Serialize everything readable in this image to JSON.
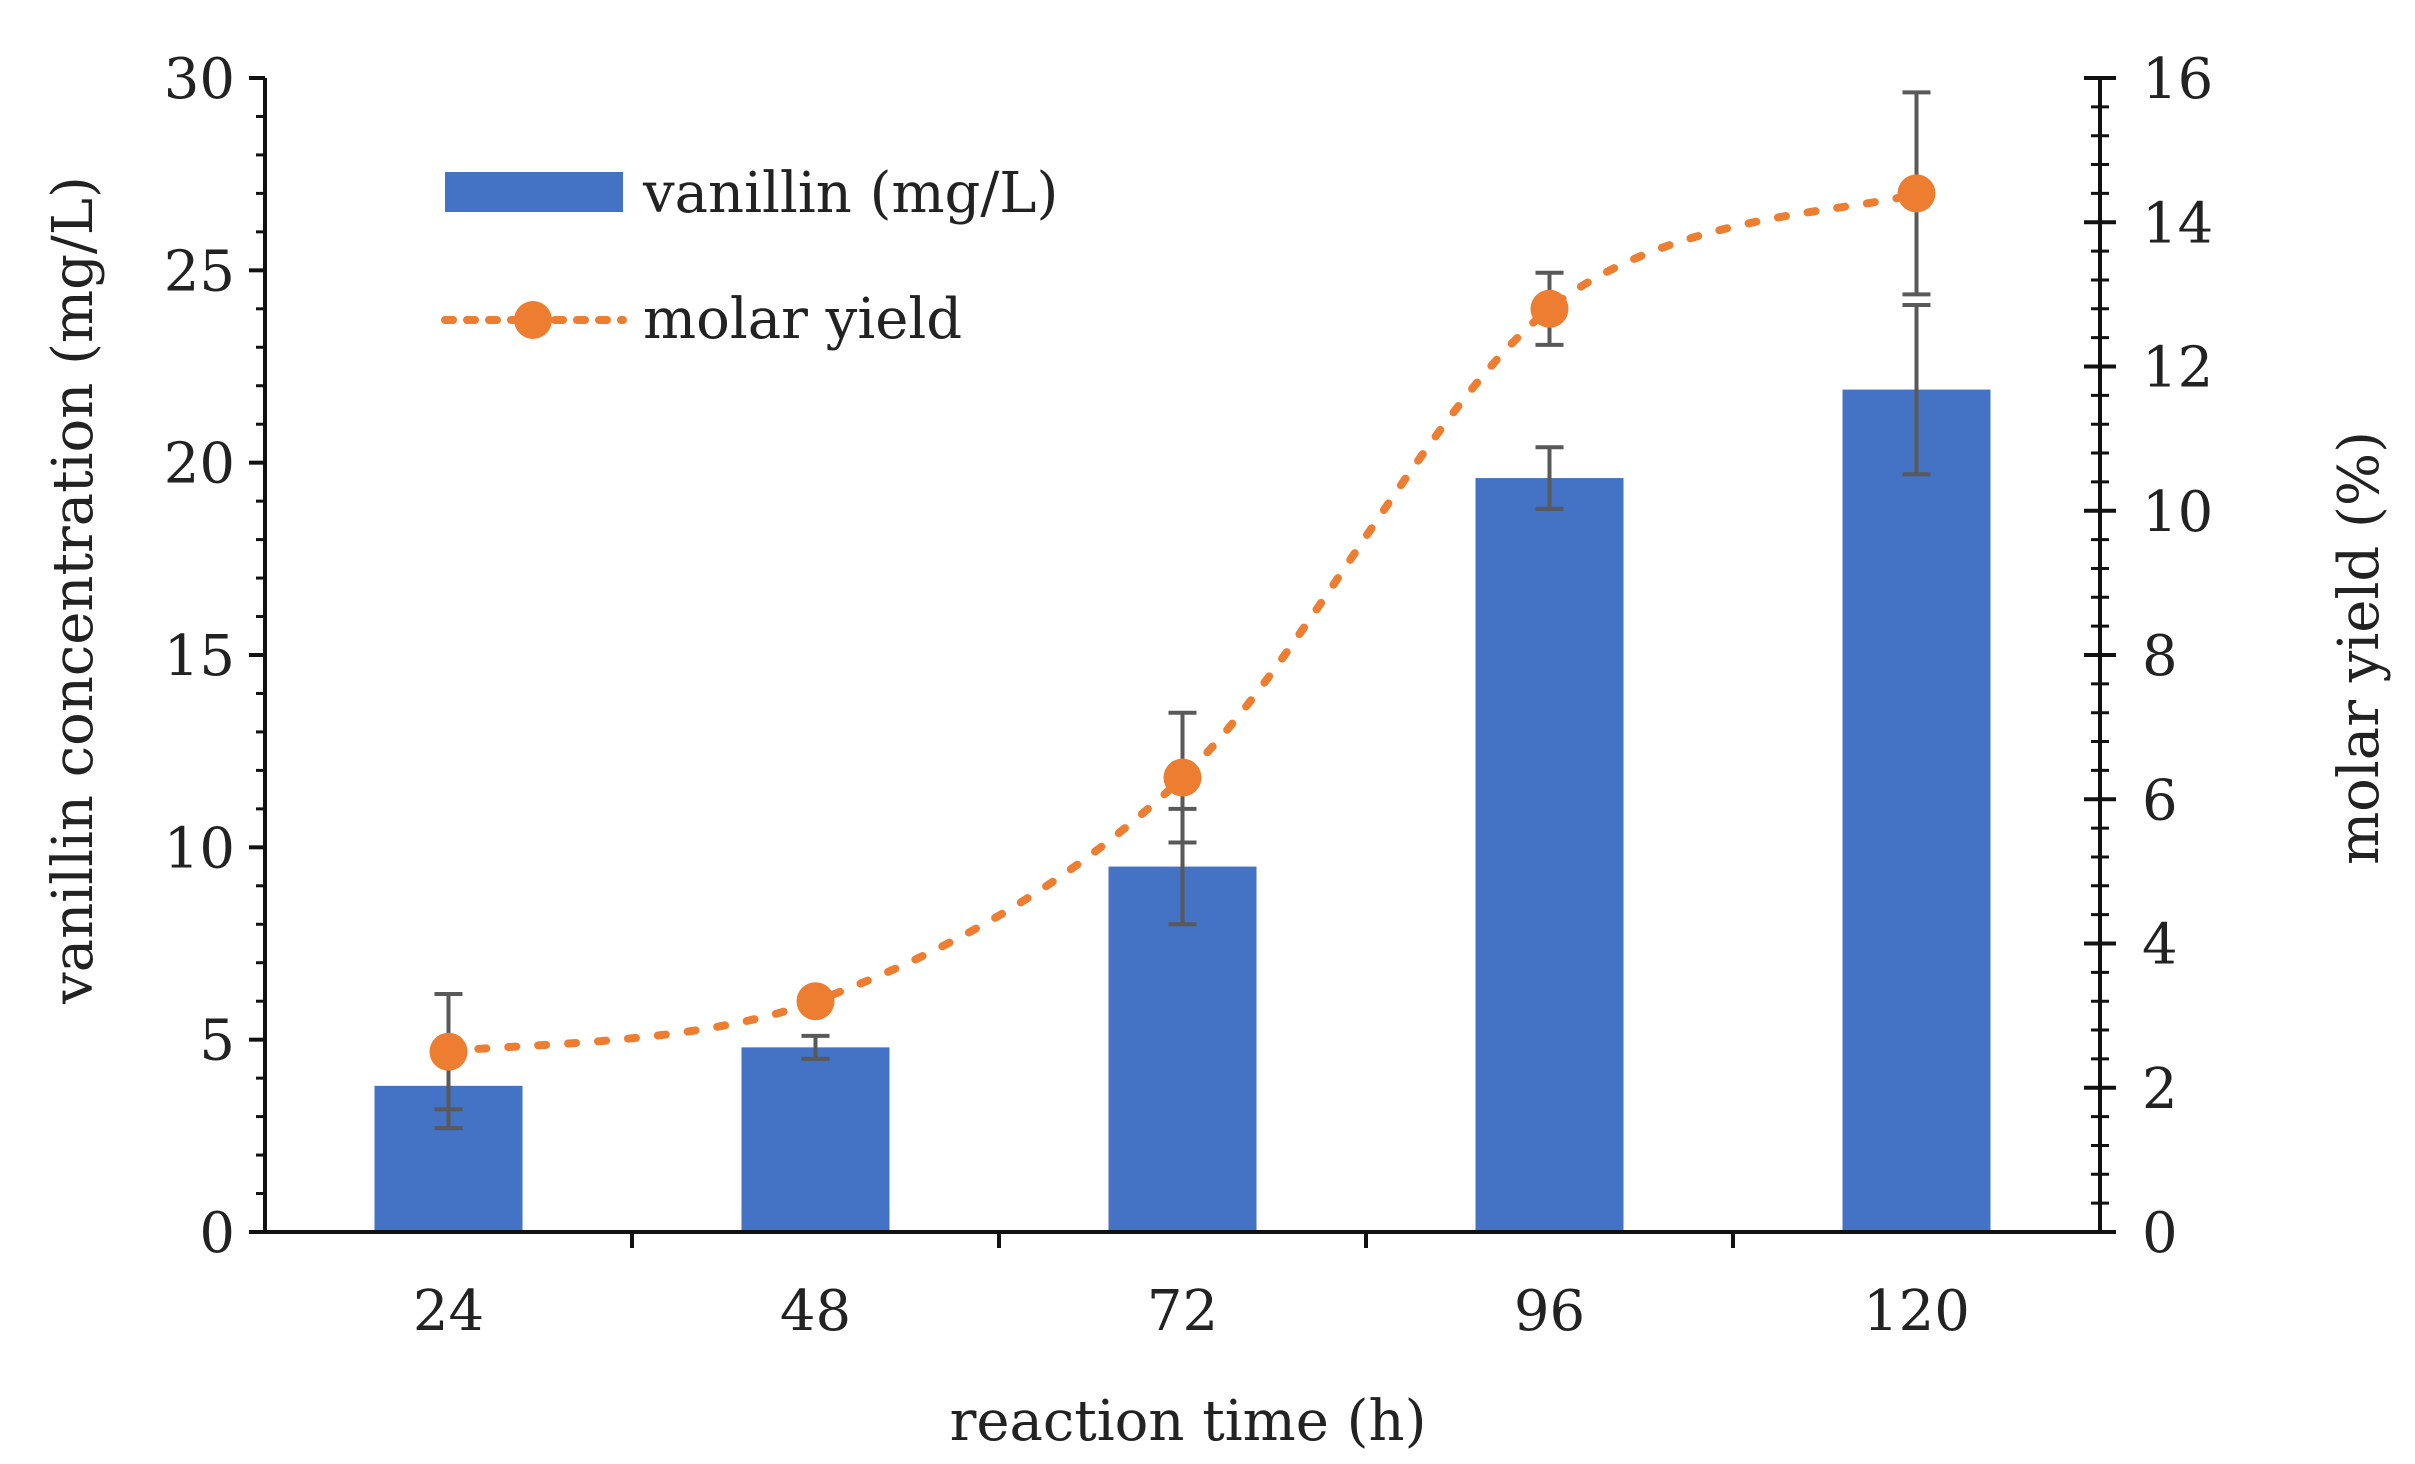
{
  "chart_data": {
    "type": "bar",
    "title": "",
    "xlabel": "reaction time (h)",
    "ylabel": "vanillin concentration (mg/L)",
    "y2label": "molar yield (%)",
    "categories": [
      "24",
      "48",
      "72",
      "96",
      "120"
    ],
    "ylim": [
      0,
      30
    ],
    "y2lim": [
      0,
      16
    ],
    "yticks": [
      0,
      5,
      10,
      15,
      20,
      25,
      30
    ],
    "y2ticks": [
      0,
      2,
      4,
      6,
      8,
      10,
      12,
      14,
      16
    ],
    "legend_position": "top-left",
    "grid": false,
    "series": [
      {
        "name": "vanillin (mg/L)",
        "type": "bar",
        "axis": "left",
        "color": "#4472C4",
        "values": [
          3.8,
          4.8,
          9.5,
          19.6,
          21.9
        ],
        "error": [
          1.1,
          0.3,
          1.5,
          0.8,
          2.2
        ]
      },
      {
        "name": "molar yield",
        "type": "line",
        "style": "dotted",
        "axis": "right",
        "color": "#ED7D31",
        "values": [
          2.5,
          3.2,
          6.3,
          12.8,
          14.4
        ],
        "error": [
          0.8,
          0.1,
          0.9,
          0.5,
          1.4
        ]
      }
    ]
  }
}
